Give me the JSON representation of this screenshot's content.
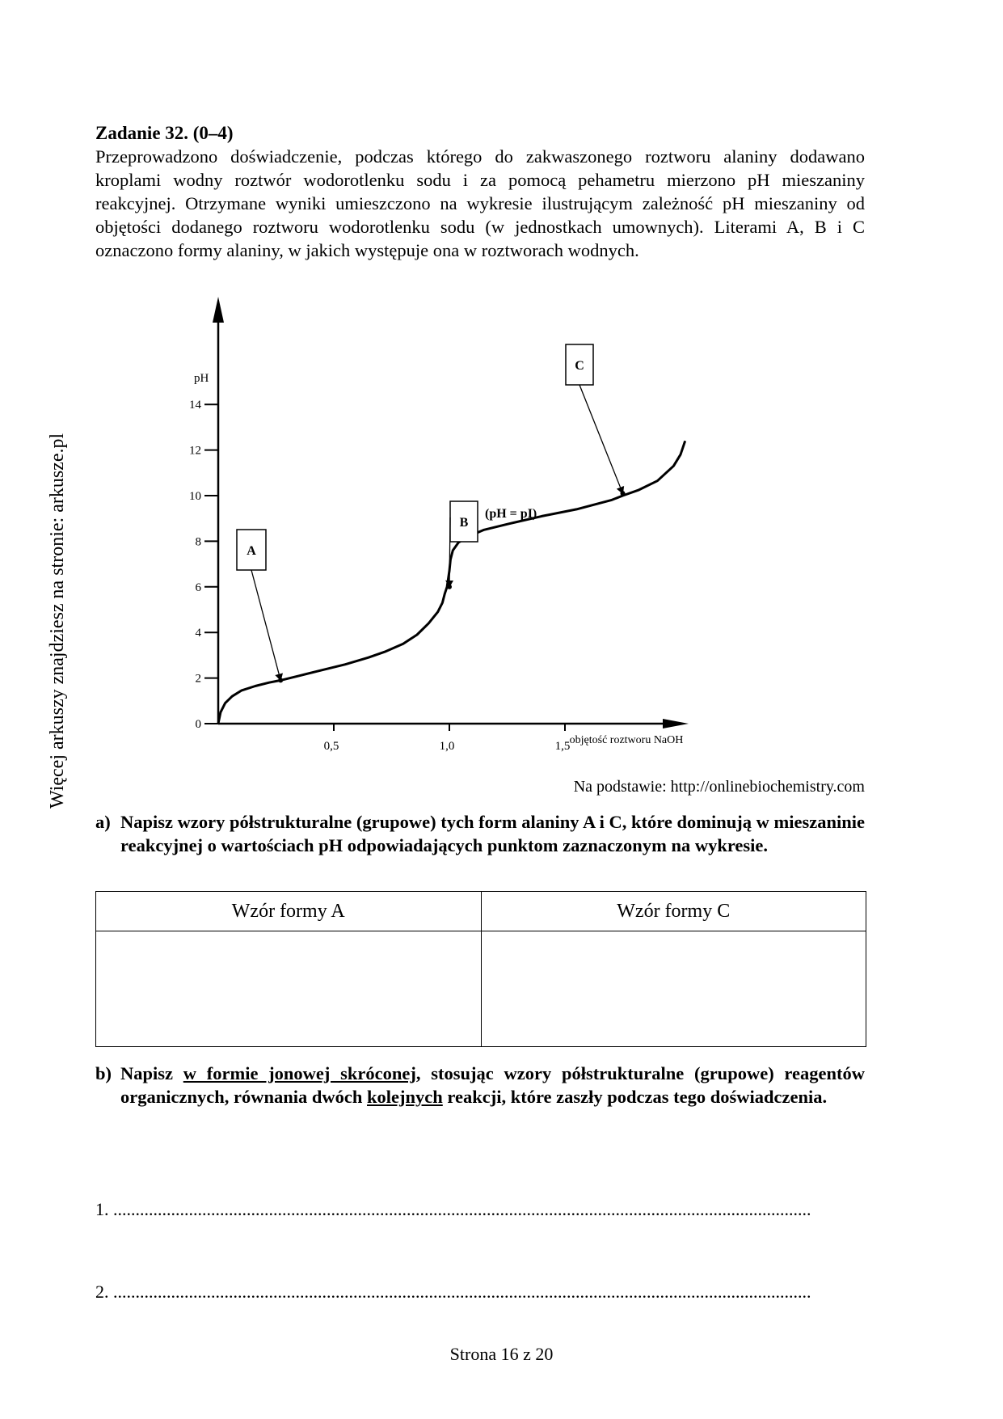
{
  "side_note": "Więcej arkuszy znajdziesz na stronie: arkusze.pl",
  "task": {
    "title": "Zadanie 32. (0–4)",
    "intro": "Przeprowadzono doświadczenie, podczas którego do zakwaszonego roztworu alaniny dodawano kroplami wodny roztwór wodorotlenku sodu i za pomocą pehametru mierzono pH mieszaniny reakcyjnej. Otrzymane wyniki umieszczono na wykresie ilustrującym zależność pH mieszaniny od objętości dodanego roztworu wodorotlenku sodu (w jednostkach umownych). Literami A, B i C oznaczono formy alaniny, w jakich występuje ona w roztworach wodnych."
  },
  "chart_data": {
    "type": "line",
    "ylabel": "pH",
    "xlabel": "objętość roztworu NaOH",
    "xlim": [
      0,
      2.1
    ],
    "ylim": [
      0,
      15.5
    ],
    "x_ticks": [
      "0,5",
      "1,0",
      "1,5"
    ],
    "x_tick_values": [
      0.5,
      1.0,
      1.5
    ],
    "y_ticks": [
      "0",
      "2",
      "4",
      "6",
      "8",
      "10",
      "12",
      "14"
    ],
    "y_tick_values": [
      0,
      2,
      4,
      6,
      8,
      10,
      12,
      14
    ],
    "series": [
      {
        "x": [
          0,
          0.01,
          0.03,
          0.06,
          0.1,
          0.16,
          0.22,
          0.27,
          0.35,
          0.45,
          0.55,
          0.65,
          0.72,
          0.8,
          0.86,
          0.91,
          0.95,
          0.97,
          0.98,
          0.99,
          1.0,
          1.005,
          1.015,
          1.04,
          1.08,
          1.15,
          1.25,
          1.4,
          1.55,
          1.7,
          1.75,
          1.82,
          1.9,
          1.97,
          2.0,
          2.02
        ],
        "y": [
          0,
          0.5,
          0.9,
          1.2,
          1.45,
          1.65,
          1.8,
          1.9,
          2.1,
          2.35,
          2.6,
          2.9,
          3.15,
          3.5,
          3.9,
          4.4,
          4.9,
          5.3,
          5.7,
          6.0,
          6.7,
          7.2,
          7.6,
          7.95,
          8.2,
          8.5,
          8.75,
          9.1,
          9.4,
          9.8,
          10.0,
          10.25,
          10.65,
          11.3,
          11.8,
          12.4
        ]
      }
    ],
    "annotations": [
      {
        "label": "A",
        "x": 0.27,
        "y": 1.9
      },
      {
        "label": "B",
        "x": 1.0,
        "y": 6.0,
        "note": "(pH = pI)"
      },
      {
        "label": "C",
        "x": 1.75,
        "y": 10.1
      }
    ],
    "grid": false
  },
  "source": "Na podstawie: http://onlinebiochemistry.com",
  "part_a": {
    "num": "a)",
    "text": "Napisz wzory półstrukturalne (grupowe) tych form alaniny A i C, które dominują w mieszaninie reakcyjnej o wartościach pH odpowiadających punktom zaznaczonym na wykresie."
  },
  "table": {
    "col1": "Wzór formy A",
    "col2": "Wzór formy C"
  },
  "part_b": {
    "num": "b)",
    "t1": "Napisz ",
    "u1": "w formie jonowej skróconej",
    "t2": ", stosując wzory półstrukturalne (grupowe) reagentów organicznych, równania dwóch ",
    "u2": "kolejnych",
    "t3": " reakcji, które zaszły podczas tego doświadczenia."
  },
  "answer_lines": {
    "line1": "1. .............................................................................................................................................................",
    "line2": "2. ............................................................................................................................................................."
  },
  "footer": "Strona 16 z 20"
}
